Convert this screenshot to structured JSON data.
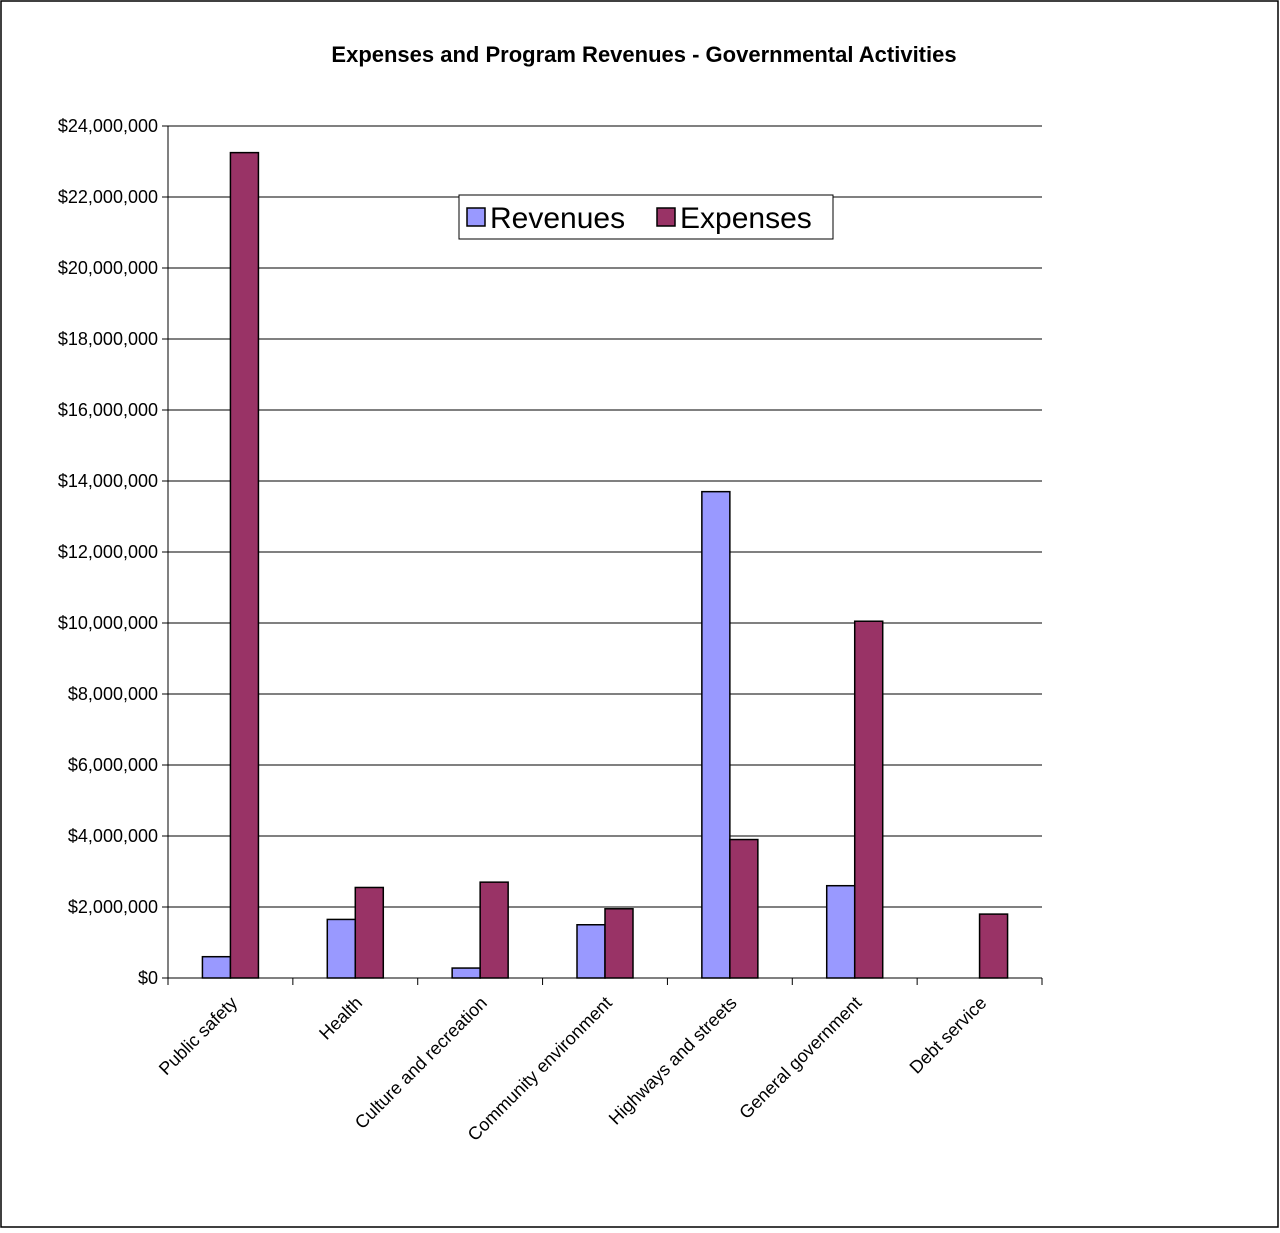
{
  "chart_data": {
    "type": "bar",
    "title": "Expenses and Program Revenues - Governmental Activities",
    "xlabel": "",
    "ylabel": "",
    "categories": [
      "Public safety",
      "Health",
      "Culture and recreation",
      "Community environment",
      "Highways and streets",
      "General government",
      "Debt service"
    ],
    "series": [
      {
        "name": "Revenues",
        "color": "#9999ff",
        "values": [
          600000,
          1650000,
          280000,
          1500000,
          13700000,
          2600000,
          0
        ]
      },
      {
        "name": "Expenses",
        "color": "#993366",
        "values": [
          23250000,
          2550000,
          2700000,
          1950000,
          3900000,
          10050000,
          1800000
        ]
      }
    ],
    "ylim": [
      0,
      24000000
    ],
    "yticks": [
      0,
      2000000,
      4000000,
      6000000,
      8000000,
      10000000,
      12000000,
      14000000,
      16000000,
      18000000,
      20000000,
      22000000,
      24000000
    ],
    "ytick_labels": [
      "$0",
      "$2,000,000",
      "$4,000,000",
      "$6,000,000",
      "$8,000,000",
      "$10,000,000",
      "$12,000,000",
      "$14,000,000",
      "$16,000,000",
      "$18,000,000",
      "$20,000,000",
      "$22,000,000",
      "$24,000,000"
    ],
    "grid": true,
    "legend_position": "top-center"
  }
}
